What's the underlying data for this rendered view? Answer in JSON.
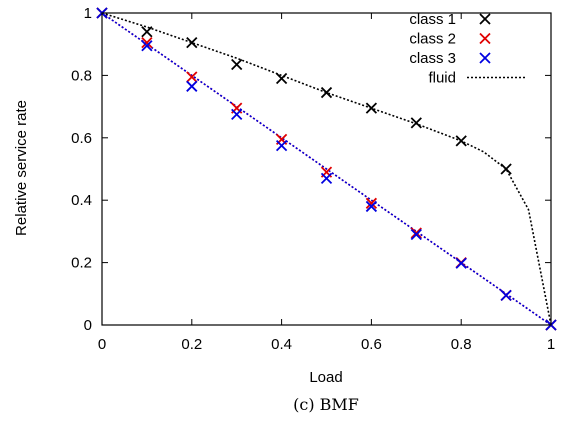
{
  "caption": "(c) BMF",
  "colors": {
    "class_1": "#000000",
    "class_2": "#e00000",
    "class_3": "#0000e0",
    "fluid_class_1": "#000000",
    "fluid_class_2": "#e00000",
    "fluid_class_3": "#0000e0"
  },
  "chart_data": {
    "type": "scatter",
    "title": "",
    "xlabel": "Load",
    "ylabel": "Relative service rate",
    "xlim": [
      0,
      1
    ],
    "ylim": [
      0,
      1
    ],
    "grid": false,
    "legend_position": "top-right",
    "xticks": [
      "0",
      "0.2",
      "0.4",
      "0.6",
      "0.8",
      "1"
    ],
    "yticks": [
      "0",
      "0.2",
      "0.4",
      "0.6",
      "0.8",
      "1"
    ],
    "x": [
      0,
      0.1,
      0.2,
      0.3,
      0.4,
      0.5,
      0.6,
      0.7,
      0.8,
      0.9,
      1
    ],
    "series": [
      {
        "name": "class 1",
        "marker": "x",
        "values": [
          1,
          0.94,
          0.905,
          0.835,
          0.79,
          0.745,
          0.695,
          0.648,
          0.59,
          0.5,
          0
        ]
      },
      {
        "name": "class 2",
        "marker": "x",
        "values": [
          1,
          0.905,
          0.795,
          0.695,
          0.595,
          0.49,
          0.39,
          0.295,
          0.2,
          0.095,
          0
        ]
      },
      {
        "name": "class 3",
        "marker": "x",
        "values": [
          1,
          0.895,
          0.765,
          0.675,
          0.575,
          0.47,
          0.38,
          0.29,
          0.198,
          0.095,
          0
        ]
      }
    ],
    "fluid": {
      "name": "fluid",
      "style": "dotted",
      "curves": [
        {
          "x": [
            0,
            0.1,
            0.2,
            0.3,
            0.4,
            0.5,
            0.6,
            0.7,
            0.8,
            0.85,
            0.9,
            0.95,
            1
          ],
          "y": [
            1,
            0.955,
            0.905,
            0.855,
            0.8,
            0.745,
            0.695,
            0.645,
            0.59,
            0.555,
            0.5,
            0.37,
            0
          ]
        },
        {
          "x": [
            0,
            1
          ],
          "y": [
            1,
            0
          ]
        },
        {
          "x": [
            0,
            1
          ],
          "y": [
            1,
            0
          ]
        }
      ]
    }
  }
}
